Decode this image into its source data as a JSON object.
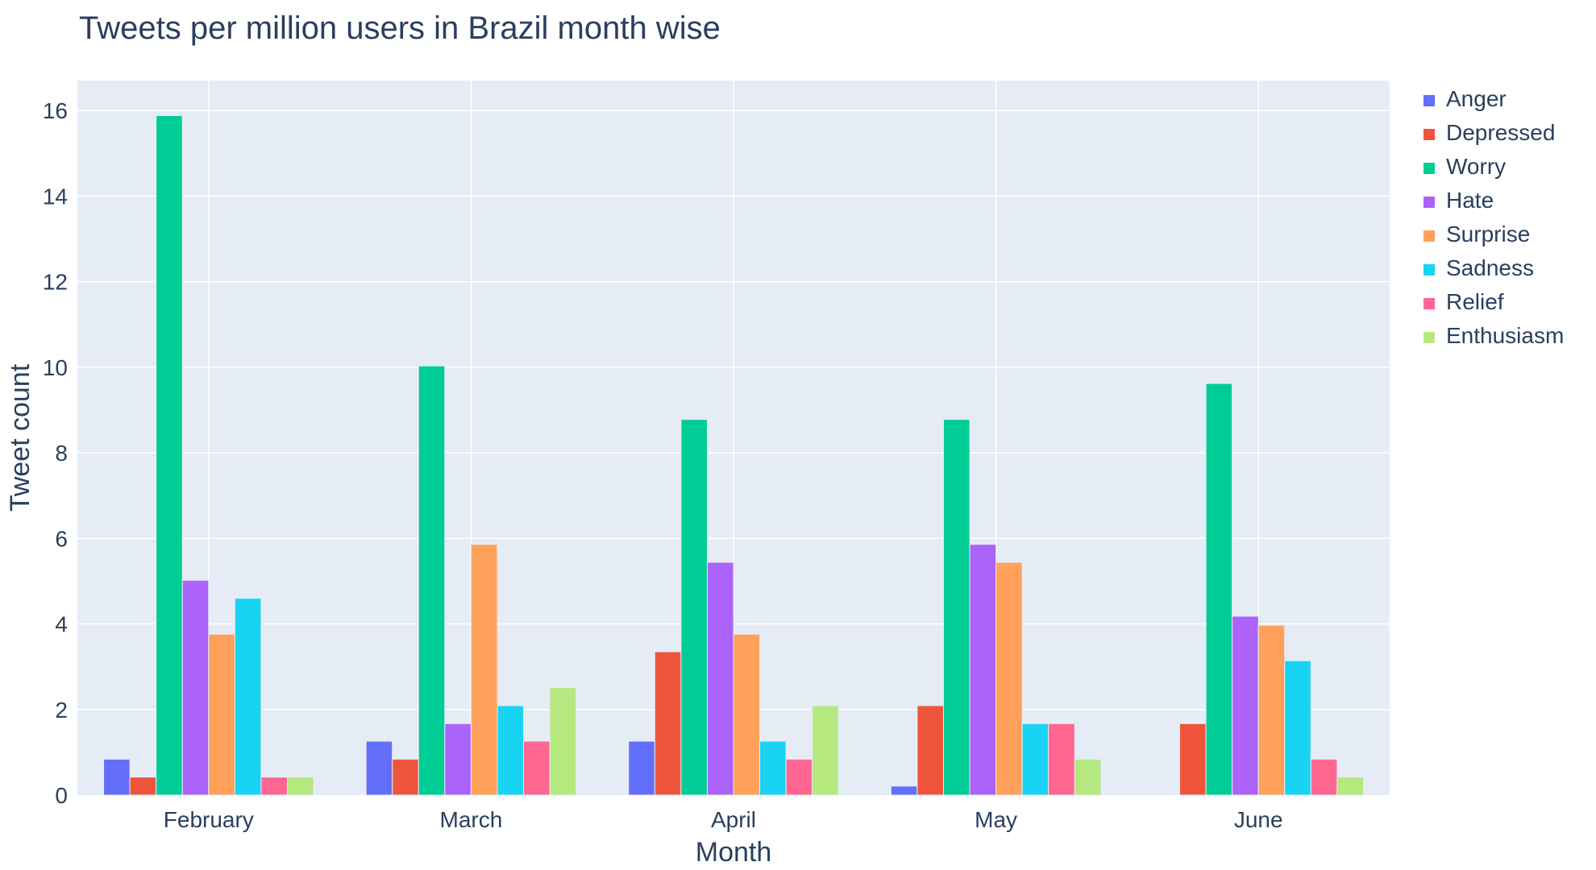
{
  "chart_data": {
    "type": "bar",
    "title": "Tweets per million users in Brazil month wise",
    "xlabel": "Month",
    "ylabel": "Tweet count",
    "categories": [
      "February",
      "March",
      "April",
      "May",
      "June"
    ],
    "ylim": [
      0,
      16.7
    ],
    "yticks": [
      0,
      2,
      4,
      6,
      8,
      10,
      12,
      14,
      16
    ],
    "grid": true,
    "legend_position": "right",
    "series": [
      {
        "name": "Anger",
        "color": "#636efa",
        "values": [
          0.84,
          1.26,
          1.26,
          0.21,
          0
        ]
      },
      {
        "name": "Depressed",
        "color": "#ef553b",
        "values": [
          0.42,
          0.84,
          3.35,
          2.09,
          1.67
        ]
      },
      {
        "name": "Worry",
        "color": "#00cc96",
        "values": [
          15.88,
          10.03,
          8.78,
          8.78,
          9.62
        ]
      },
      {
        "name": "Hate",
        "color": "#ab63fa",
        "values": [
          5.02,
          1.67,
          5.44,
          5.86,
          4.18
        ]
      },
      {
        "name": "Surprise",
        "color": "#ffa15a",
        "values": [
          3.76,
          5.86,
          3.76,
          5.44,
          3.97
        ]
      },
      {
        "name": "Sadness",
        "color": "#19d3f3",
        "values": [
          4.6,
          2.09,
          1.26,
          1.67,
          3.14
        ]
      },
      {
        "name": "Relief",
        "color": "#ff6692",
        "values": [
          0.42,
          1.26,
          0.84,
          1.67,
          0.84
        ]
      },
      {
        "name": "Enthusiasm",
        "color": "#b6e880",
        "values": [
          0.42,
          2.51,
          2.09,
          0.84,
          0.42
        ]
      }
    ]
  },
  "colors": {
    "plot_background": "#e5ecf6",
    "gridline": "#ffffff",
    "text": "#2a3f5f"
  }
}
